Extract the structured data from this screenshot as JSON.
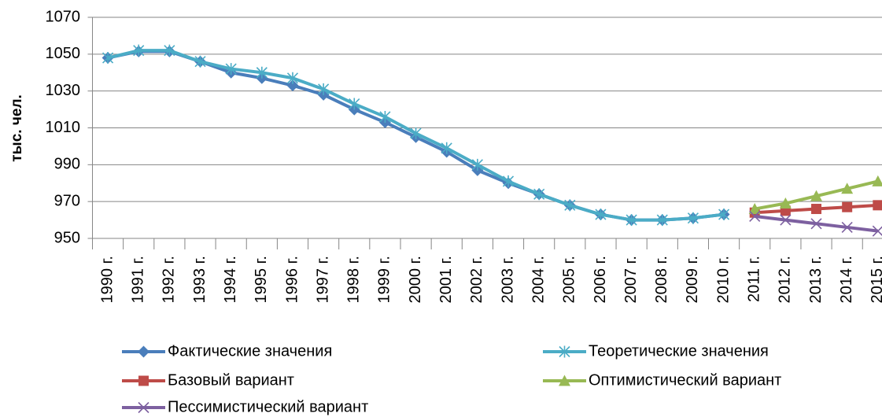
{
  "chart_data": {
    "type": "line",
    "y_label": "тыс. чел.",
    "categories": [
      "1990 г.",
      "1991 г.",
      "1992 г.",
      "1993 г.",
      "1994 г.",
      "1995 г.",
      "1996 г.",
      "1997 г.",
      "1998 г.",
      "1999 г.",
      "2000 г.",
      "2001 г.",
      "2002 г.",
      "2003 г.",
      "2004 г.",
      "2005 г.",
      "2006 г.",
      "2007 г.",
      "2008 г.",
      "2009 г.",
      "2010 г.",
      "2011 г.",
      "2012 г.",
      "2013 г.",
      "2014 г.",
      "2015 г."
    ],
    "series": [
      {
        "name": "Фактические значения",
        "color": "#4a7ebb",
        "marker": "diamond",
        "values": [
          1048,
          1051.5,
          1051.5,
          1046,
          1040,
          1037,
          1033,
          1028,
          1020,
          1013,
          1005,
          997,
          987,
          980,
          974,
          968,
          963,
          960,
          960,
          961,
          963,
          null,
          null,
          null,
          null,
          null
        ]
      },
      {
        "name": "Теоретические значения",
        "color": "#4bacc6",
        "marker": "star",
        "values": [
          1048,
          1052,
          1052,
          1046,
          1042,
          1040,
          1037,
          1031,
          1023,
          1016,
          1007,
          999,
          990,
          981,
          974,
          968,
          963,
          960,
          960,
          961,
          963,
          null,
          null,
          null,
          null,
          null
        ]
      },
      {
        "name": "Базовый вариант",
        "color": "#be4b48",
        "marker": "square",
        "values": [
          null,
          null,
          null,
          null,
          null,
          null,
          null,
          null,
          null,
          null,
          null,
          null,
          null,
          null,
          null,
          null,
          null,
          null,
          null,
          null,
          null,
          964,
          965,
          966,
          967,
          968
        ]
      },
      {
        "name": "Оптимистический вариант",
        "color": "#98b954",
        "marker": "triangle",
        "values": [
          null,
          null,
          null,
          null,
          null,
          null,
          null,
          null,
          null,
          null,
          null,
          null,
          null,
          null,
          null,
          null,
          null,
          null,
          null,
          null,
          null,
          966,
          969,
          973,
          977,
          981
        ]
      },
      {
        "name": "Пессимистический вариант",
        "color": "#7d60a0",
        "marker": "x",
        "values": [
          null,
          null,
          null,
          null,
          null,
          null,
          null,
          null,
          null,
          null,
          null,
          null,
          null,
          null,
          null,
          null,
          null,
          null,
          null,
          null,
          null,
          962,
          960,
          958,
          956,
          954
        ]
      }
    ],
    "ylim": [
      950,
      1070
    ],
    "yticks": [
      950,
      970,
      990,
      1010,
      1030,
      1050,
      1070
    ],
    "grid": true
  }
}
